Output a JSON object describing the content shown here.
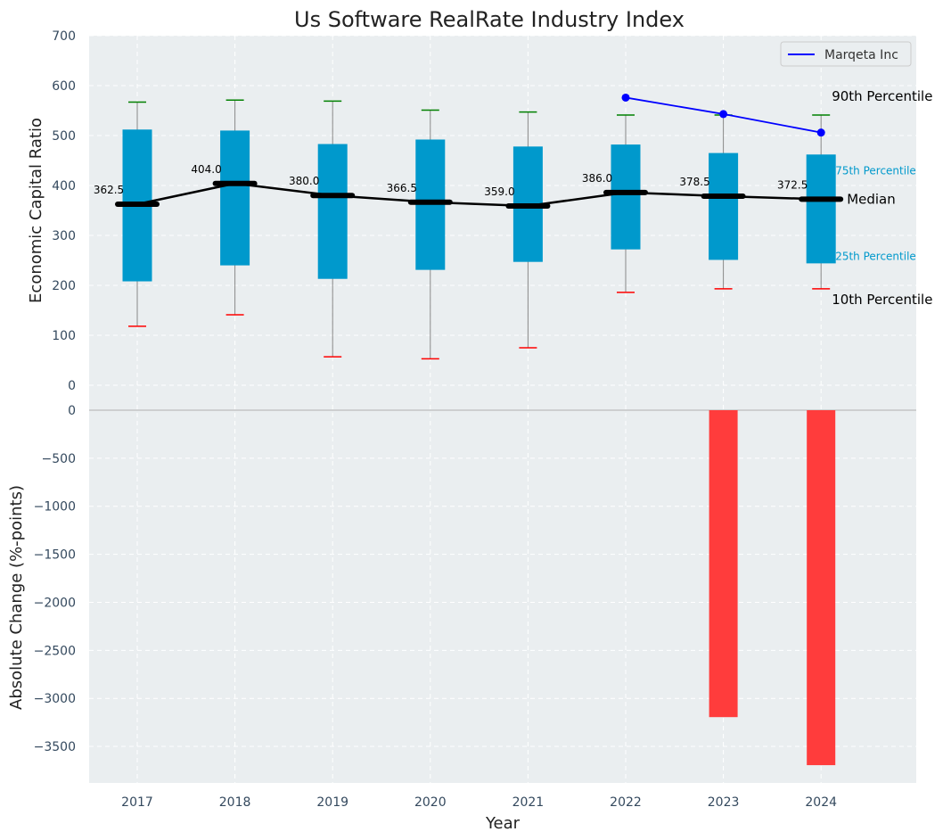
{
  "chart_data": {
    "title": "Us Software RealRate Industry Index",
    "type": "box",
    "x_label": "Year",
    "categories": [
      "2017",
      "2018",
      "2019",
      "2020",
      "2021",
      "2022",
      "2023",
      "2024"
    ],
    "top_panel": {
      "ylabel": "Economic Capital Ratio",
      "ylim": [
        0,
        700
      ],
      "yticks": [
        "0",
        "100",
        "200",
        "300",
        "400",
        "500",
        "600",
        "700"
      ],
      "grid": true,
      "boxes": [
        {
          "year": "2017",
          "p10": 118,
          "p25": 208,
          "median": 362.5,
          "p75": 512,
          "p90": 567
        },
        {
          "year": "2018",
          "p10": 141,
          "p25": 240,
          "median": 404.0,
          "p75": 510,
          "p90": 571
        },
        {
          "year": "2019",
          "p10": 57,
          "p25": 213,
          "median": 380.0,
          "p75": 483,
          "p90": 569
        },
        {
          "year": "2020",
          "p10": 53,
          "p25": 231,
          "median": 366.5,
          "p75": 492,
          "p90": 551
        },
        {
          "year": "2021",
          "p10": 75,
          "p25": 247,
          "median": 359.0,
          "p75": 478,
          "p90": 547
        },
        {
          "year": "2022",
          "p10": 186,
          "p25": 272,
          "median": 386.0,
          "p75": 482,
          "p90": 541
        },
        {
          "year": "2023",
          "p10": 193,
          "p25": 251,
          "median": 378.5,
          "p75": 465,
          "p90": 541
        },
        {
          "year": "2024",
          "p10": 193,
          "p25": 244,
          "median": 372.5,
          "p75": 462,
          "p90": 541
        }
      ],
      "median_labels": [
        "362.5",
        "404.0",
        "380.0",
        "366.5",
        "359.0",
        "386.0",
        "378.5",
        "372.5"
      ],
      "company_series": {
        "name": "Marqeta Inc",
        "years": [
          "2022",
          "2023",
          "2024"
        ],
        "values": [
          576,
          543,
          506
        ]
      },
      "annotations": {
        "p90": "90th Percentile",
        "p75": "75th Percentile",
        "median": "Median",
        "p25": "25th Percentile",
        "p10": "10th Percentile"
      },
      "legend_position": "top-right"
    },
    "bottom_panel": {
      "ylabel": "Absolute Change (%-points)",
      "ylim": [
        -3880,
        0
      ],
      "yticks": [
        "0",
        "−500",
        "−1000",
        "−1500",
        "−2000",
        "−2500",
        "−3000",
        "−3500"
      ],
      "grid": true,
      "bars": [
        {
          "year": "2023",
          "value": -3195
        },
        {
          "year": "2024",
          "value": -3695
        }
      ]
    },
    "colors": {
      "box": "#0099cc",
      "median_line": "#000000",
      "company_line": "#0000ff",
      "p90_cap": "#008000",
      "p10_cap": "#ff0000",
      "bar_negative": "#ff3c3c",
      "background": "#eaeef0",
      "annotation_quartile": "#0099cc"
    }
  }
}
